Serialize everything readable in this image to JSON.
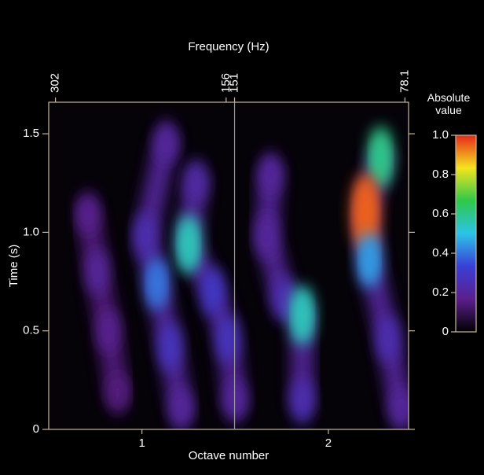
{
  "chart_data": {
    "type": "heatmap",
    "title": "Frequency (Hz)",
    "xlabel": "Octave number",
    "ylabel": "Time (s)",
    "colorbar_label": "Absolute value",
    "xlim": [
      0.5,
      2.43
    ],
    "xticks": [
      1,
      2
    ],
    "ylim": [
      0,
      1.66
    ],
    "yticks": [
      0,
      0.5,
      {
        "value": 1,
        "label": "1.0"
      },
      1.5
    ],
    "x2lim": [
      310,
      77
    ],
    "x2scale": "log",
    "x2ticks": [
      302,
      156,
      151,
      78.1
    ],
    "separator_tick": 2,
    "clim": [
      0,
      1
    ],
    "cticks": [
      0,
      0.2,
      0.4,
      0.6,
      0.8,
      {
        "value": 1,
        "label": "1.0"
      }
    ],
    "colormap": [
      "#000000",
      "#5b1f8c",
      "#3a3fd6",
      "#2cc3e8",
      "#2ec84a",
      "#f3e51e",
      "#e8281a"
    ],
    "ridges": [
      {
        "x": [
          0.71,
          0.76,
          0.82,
          0.87
        ],
        "y": [
          1.1,
          0.8,
          0.5,
          0.18
        ],
        "values": [
          0.18,
          0.2,
          0.18,
          0.15
        ]
      },
      {
        "x": [
          1.13,
          1.02,
          1.08,
          1.15,
          1.21
        ],
        "y": [
          1.46,
          0.98,
          0.74,
          0.42,
          0.1
        ],
        "values": [
          0.2,
          0.25,
          0.4,
          0.28,
          0.2
        ]
      },
      {
        "x": [
          1.29,
          1.25,
          1.38,
          1.46,
          1.5
        ],
        "y": [
          1.26,
          0.94,
          0.7,
          0.46,
          0.14
        ],
        "values": [
          0.22,
          0.55,
          0.3,
          0.28,
          0.2
        ]
      },
      {
        "x": [
          1.69,
          1.67,
          1.76,
          1.86,
          1.86
        ],
        "y": [
          1.3,
          0.98,
          0.66,
          0.58,
          0.14
        ],
        "values": [
          0.2,
          0.2,
          0.25,
          0.55,
          0.25
        ]
      },
      {
        "x": [
          2.28,
          2.2,
          2.22,
          2.32,
          2.39
        ],
        "y": [
          1.38,
          1.1,
          0.86,
          0.46,
          0.1
        ],
        "values": [
          0.6,
          0.95,
          0.45,
          0.25,
          0.2
        ]
      }
    ]
  }
}
